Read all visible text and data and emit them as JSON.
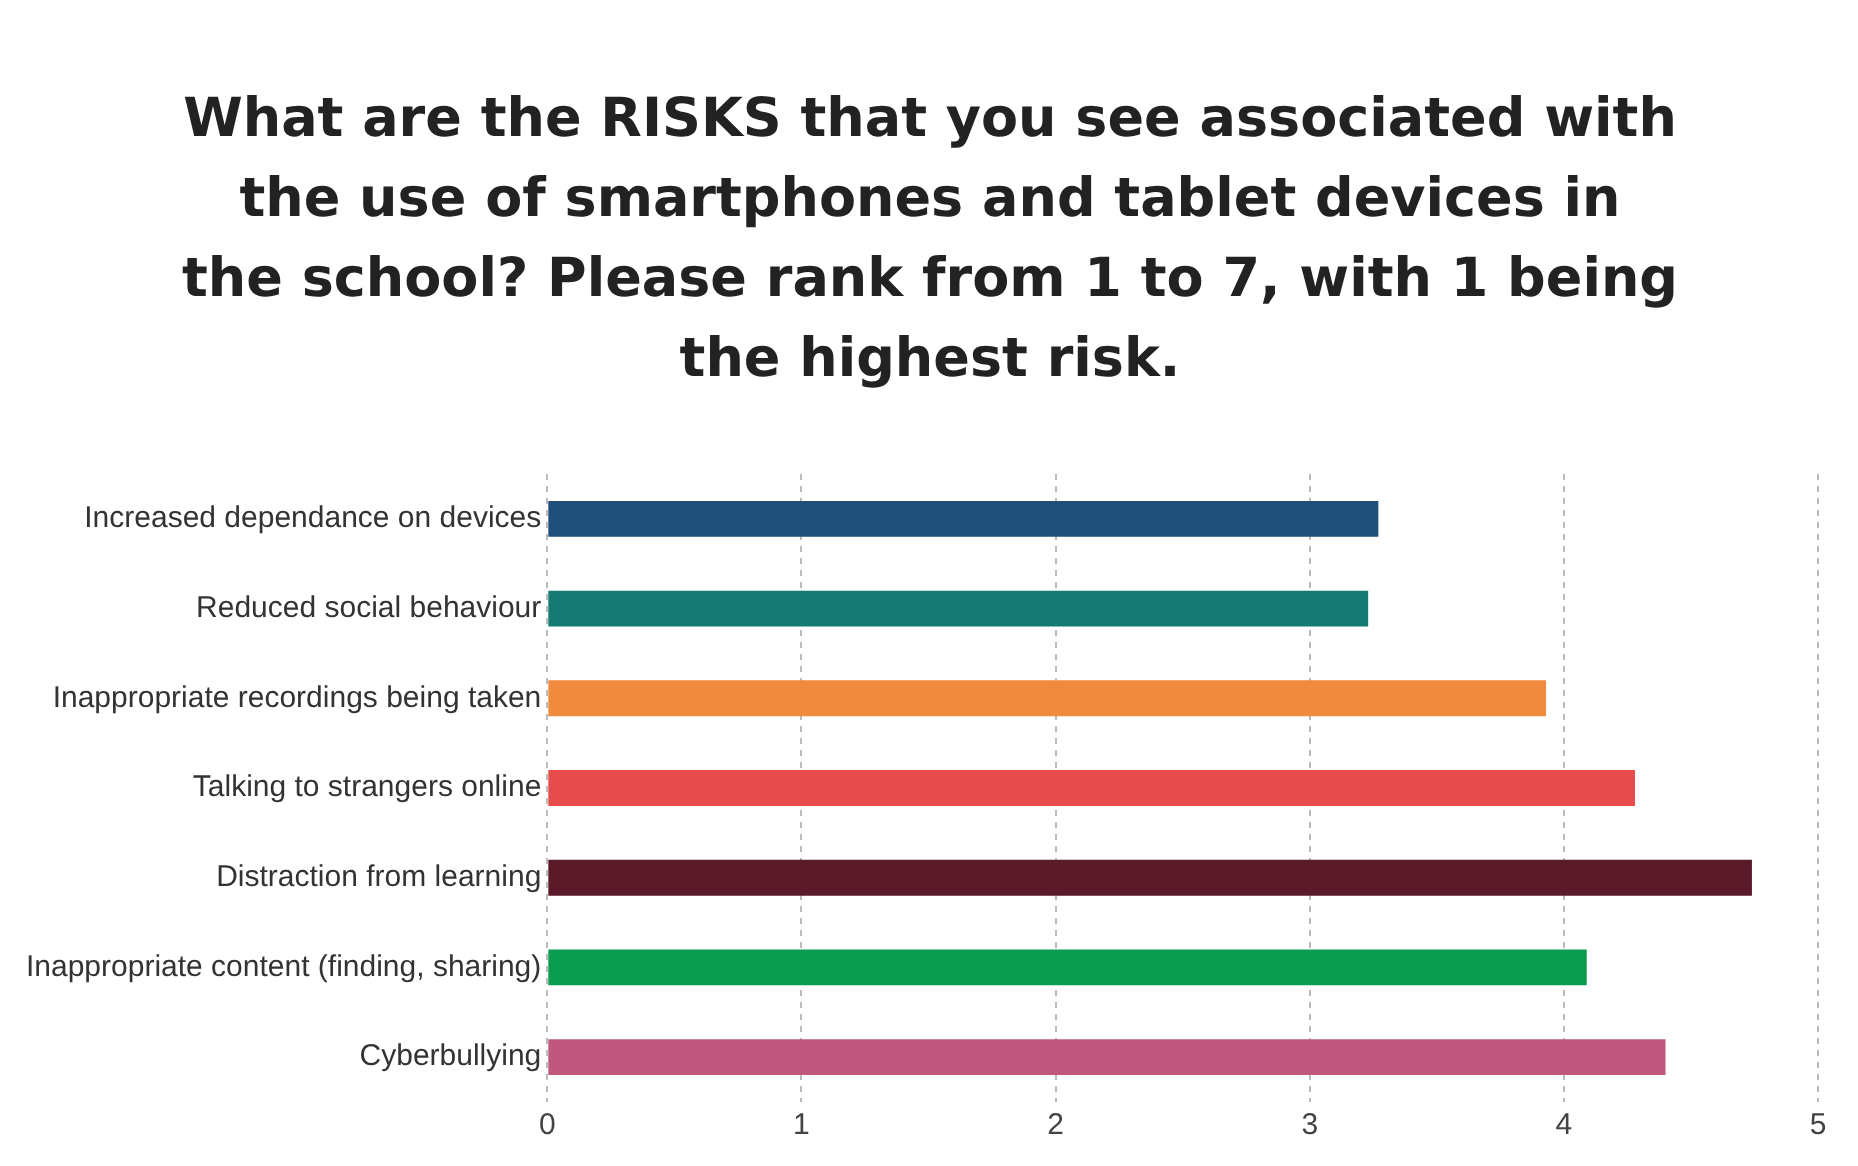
{
  "chart_data": {
    "type": "bar",
    "orientation": "horizontal",
    "title": "What are the RISKS that you see associated with the use of smartphones and tablet devices in the school? Please rank from 1 to 7, with 1 being the highest risk.",
    "categories": [
      "Increased dependance on devices",
      "Reduced social behaviour",
      "Inappropriate recordings being taken",
      "Talking to strangers online",
      "Distraction from learning",
      "Inappropriate content (finding, sharing)",
      "Cyberbullying"
    ],
    "values": [
      3.27,
      3.23,
      3.93,
      4.28,
      4.74,
      4.09,
      4.4
    ],
    "colors": [
      "#1f4e79",
      "#157a72",
      "#f08a3c",
      "#e84b4b",
      "#5a1a2a",
      "#0a9c4e",
      "#c0587e"
    ],
    "xlim": [
      0,
      5
    ],
    "xticks": [
      0,
      1,
      2,
      3,
      4,
      5
    ],
    "grid": "x",
    "legend": false
  }
}
